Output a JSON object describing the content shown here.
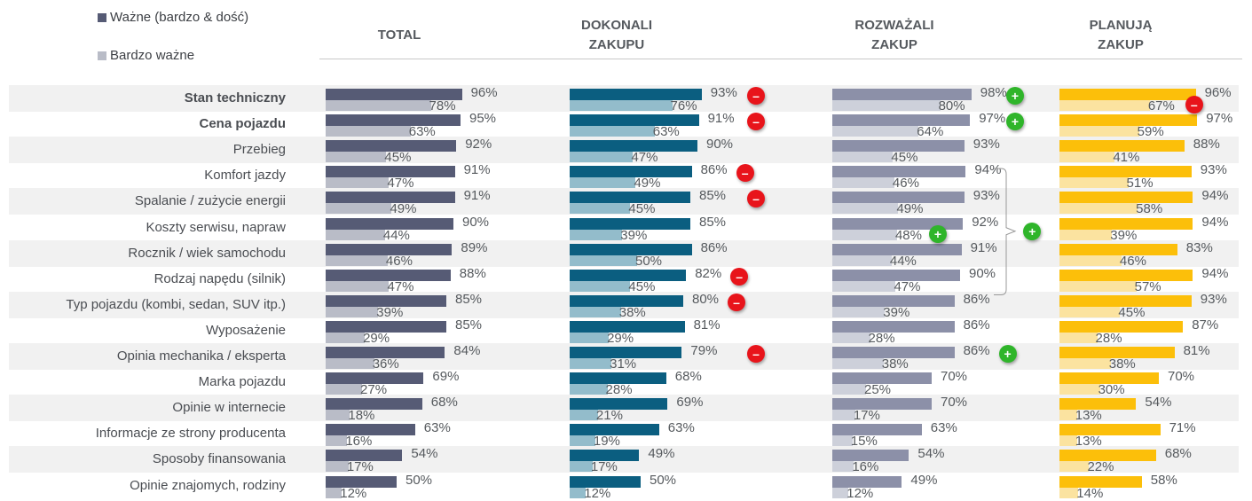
{
  "legend": [
    {
      "label": "Ważne (bardzo & dość)",
      "color": "#565b75"
    },
    {
      "label": "Bardzo ważne",
      "color": "#b9bcc7"
    }
  ],
  "chart_data": {
    "type": "bar",
    "orientation": "horizontal",
    "title": "",
    "xlabel": "",
    "ylabel": "",
    "xlim": [
      0,
      100
    ],
    "unit": "%",
    "categories": [
      "Stan techniczny",
      "Cena pojazdu",
      "Przebieg",
      "Komfort jazdy",
      "Spalanie / zużycie energii",
      "Koszty serwisu, napraw",
      "Rocznik / wiek samochodu",
      "Rodzaj napędu (silnik)",
      "Typ pojazdu (kombi, sedan, SUV itp.)",
      "Wyposażenie",
      "Opinia mechanika / eksperta",
      "Marka pojazdu",
      "Opinie w internecie",
      "Informacje ze strony producenta",
      "Sposoby finansowania",
      "Opinie znajomych, rodziny"
    ],
    "bold_categories": [
      "Stan techniczny",
      "Cena pojazdu"
    ],
    "panels": [
      {
        "name": "TOTAL",
        "title_lines": [
          "TOTAL"
        ],
        "colors": {
          "important": "#565b75",
          "very_important": "#b9bcc7"
        },
        "series": [
          {
            "name": "Ważne (bardzo & dość)",
            "values": [
              96,
              95,
              92,
              91,
              91,
              90,
              89,
              88,
              85,
              85,
              84,
              69,
              68,
              63,
              54,
              50
            ]
          },
          {
            "name": "Bardzo ważne",
            "values": [
              78,
              63,
              45,
              47,
              49,
              44,
              46,
              47,
              39,
              29,
              36,
              27,
              18,
              16,
              17,
              12
            ]
          }
        ],
        "markers": []
      },
      {
        "name": "DOKONALI ZAKUPU",
        "title_lines": [
          "DOKONALI",
          "ZAKUPU"
        ],
        "colors": {
          "important": "#0b5e80",
          "very_important": "#93bccb"
        },
        "series": [
          {
            "name": "Ważne (bardzo & dość)",
            "values": [
              93,
              91,
              90,
              86,
              85,
              85,
              86,
              82,
              80,
              81,
              79,
              68,
              69,
              63,
              49,
              50
            ]
          },
          {
            "name": "Bardzo ważne",
            "values": [
              76,
              63,
              47,
              49,
              45,
              39,
              50,
              45,
              38,
              29,
              31,
              28,
              21,
              19,
              17,
              12
            ]
          }
        ],
        "markers": [
          {
            "row": 0,
            "type": "minus"
          },
          {
            "row": 1,
            "type": "minus"
          },
          {
            "row": 3,
            "type": "minus"
          },
          {
            "row": 4,
            "type": "minus"
          },
          {
            "row": 7,
            "type": "minus"
          },
          {
            "row": 8,
            "type": "minus"
          },
          {
            "row": 10,
            "type": "minus"
          }
        ]
      },
      {
        "name": "ROZWAŻALI ZAKUP",
        "title_lines": [
          "ROZWAŻALI",
          "ZAKUP"
        ],
        "colors": {
          "important": "#8c90a8",
          "very_important": "#cdd0da"
        },
        "series": [
          {
            "name": "Ważne (bardzo & dość)",
            "values": [
              98,
              97,
              93,
              94,
              93,
              92,
              91,
              90,
              86,
              86,
              86,
              70,
              70,
              63,
              54,
              49
            ]
          },
          {
            "name": "Bardzo ważne",
            "values": [
              80,
              64,
              45,
              46,
              49,
              48,
              44,
              47,
              39,
              28,
              38,
              25,
              17,
              15,
              16,
              12
            ]
          }
        ],
        "markers": [
          {
            "row": 0,
            "type": "plus"
          },
          {
            "row": 1,
            "type": "plus"
          },
          {
            "row": 5,
            "type": "plus",
            "on": "very_important"
          },
          {
            "row": 10,
            "type": "plus"
          },
          {
            "rows": [
              3,
              8
            ],
            "type": "plus",
            "bracket": true
          }
        ]
      },
      {
        "name": "PLANUJĄ ZAKUP",
        "title_lines": [
          "PLANUJĄ",
          "ZAKUP"
        ],
        "colors": {
          "important": "#fcbf0a",
          "very_important": "#fbe3a0"
        },
        "series": [
          {
            "name": "Ważne (bardzo & dość)",
            "values": [
              96,
              97,
              88,
              93,
              94,
              94,
              83,
              94,
              93,
              87,
              81,
              70,
              54,
              71,
              68,
              58
            ]
          },
          {
            "name": "Bardzo ważne",
            "values": [
              67,
              59,
              41,
              51,
              58,
              39,
              46,
              57,
              45,
              28,
              38,
              30,
              13,
              13,
              22,
              14
            ]
          }
        ],
        "markers": [
          {
            "row": 0,
            "type": "minus",
            "on": "very_important"
          }
        ]
      }
    ]
  }
}
